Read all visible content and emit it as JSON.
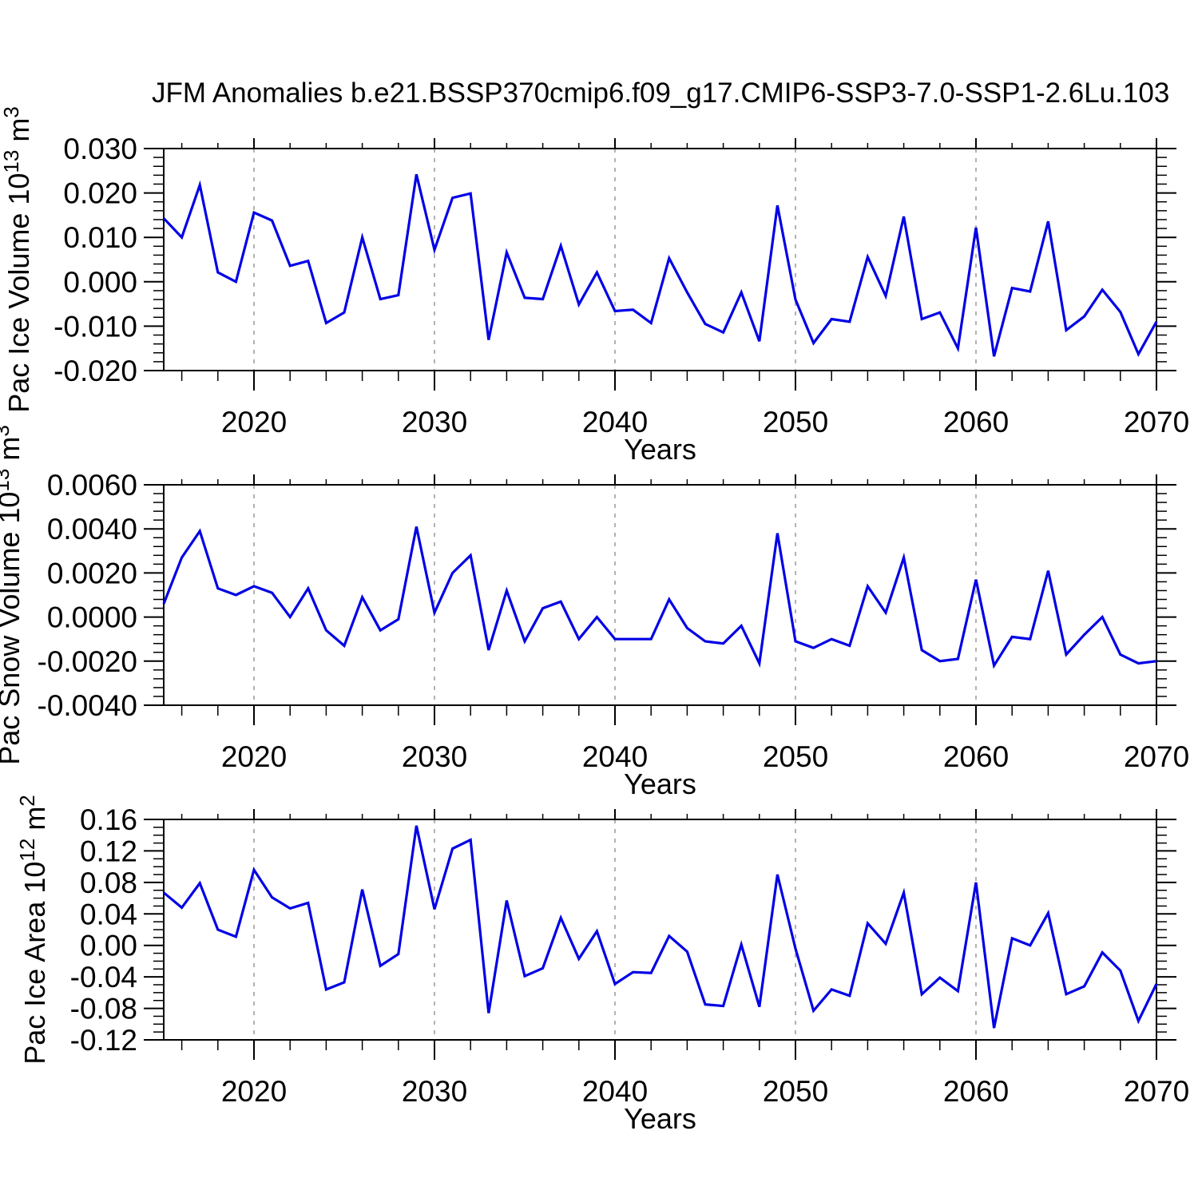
{
  "title": "JFM Anomalies b.e21.BSSP370cmip6.f09_g17.CMIP6-SSP3-7.0-SSP1-2.6Lu.103",
  "xlabel": "Years",
  "line_color": "#0000e6",
  "grid_color": "#999999",
  "axis_color": "#000000",
  "x_major_ticks": [
    2020,
    2030,
    2040,
    2050,
    2060,
    2070
  ],
  "x_minor_step_years": 2,
  "grid_years": [
    2020,
    2030,
    2040,
    2050,
    2060
  ],
  "years_start": 2015,
  "years_end": 2070,
  "chart_data": [
    {
      "type": "line",
      "name": "pac-ice-volume",
      "ylabel_text": "Pac Ice Volume 10^13 m^3",
      "ylabel_parts": [
        {
          "t": "Pac Ice Volume 10"
        },
        {
          "sup": "13"
        },
        {
          "t": " m"
        },
        {
          "sup": "3"
        }
      ],
      "xlabel": "Years",
      "xlim": [
        2015,
        2070
      ],
      "ylim": [
        -0.02,
        0.03
      ],
      "grid": "vertical-dashed",
      "legend": "none",
      "ytick_values": [
        0.03,
        0.02,
        0.01,
        0.0,
        -0.01,
        -0.02
      ],
      "ytick_labels": [
        "0.030",
        "0.020",
        "0.010",
        "0.000",
        "-0.010",
        "-0.020"
      ],
      "y_minor_step": 0.002,
      "y_major_every": 5,
      "x": [
        2015,
        2016,
        2017,
        2018,
        2019,
        2020,
        2021,
        2022,
        2023,
        2024,
        2025,
        2026,
        2027,
        2028,
        2029,
        2030,
        2031,
        2032,
        2033,
        2034,
        2035,
        2036,
        2037,
        2038,
        2039,
        2040,
        2041,
        2042,
        2043,
        2044,
        2045,
        2046,
        2047,
        2048,
        2049,
        2050,
        2051,
        2052,
        2053,
        2054,
        2055,
        2056,
        2057,
        2058,
        2059,
        2060,
        2061,
        2062,
        2063,
        2064,
        2065,
        2066,
        2067,
        2068,
        2069,
        2070
      ],
      "values": [
        0.0143,
        0.01,
        0.0218,
        0.0021,
        0.0,
        0.0156,
        0.0138,
        0.0036,
        0.0047,
        -0.0093,
        -0.0069,
        0.01,
        -0.0039,
        -0.003,
        0.0242,
        0.0072,
        0.0189,
        0.0199,
        -0.0131,
        0.0066,
        -0.0036,
        -0.0039,
        0.0081,
        -0.0051,
        0.0021,
        -0.0066,
        -0.0063,
        -0.0093,
        0.0053,
        -0.0024,
        -0.0095,
        -0.0114,
        -0.0024,
        -0.0134,
        0.0172,
        -0.004,
        -0.0138,
        -0.0084,
        -0.009,
        0.0056,
        -0.0032,
        0.0147,
        -0.0084,
        -0.0069,
        -0.015,
        0.0122,
        -0.0168,
        -0.0014,
        -0.0022,
        0.0136,
        -0.0109,
        -0.0078,
        -0.0018,
        -0.0068,
        -0.0163,
        -0.009
      ]
    },
    {
      "type": "line",
      "name": "pac-snow-volume",
      "ylabel_text": "Pac Snow Volume 10^13 m^3",
      "ylabel_parts": [
        {
          "t": "Pac Snow Volume 10"
        },
        {
          "sup": "13"
        },
        {
          "t": " m"
        },
        {
          "sup": "3"
        }
      ],
      "xlabel": "Years",
      "xlim": [
        2015,
        2070
      ],
      "ylim": [
        -0.004,
        0.006
      ],
      "grid": "vertical-dashed",
      "legend": "none",
      "ytick_values": [
        0.006,
        0.004,
        0.002,
        0.0,
        -0.002,
        -0.004
      ],
      "ytick_labels": [
        "0.0060",
        "0.0040",
        "0.0020",
        "0.0000",
        "-0.0020",
        "-0.0040"
      ],
      "y_minor_step": 0.0004,
      "y_major_every": 5,
      "x": [
        2015,
        2016,
        2017,
        2018,
        2019,
        2020,
        2021,
        2022,
        2023,
        2024,
        2025,
        2026,
        2027,
        2028,
        2029,
        2030,
        2031,
        2032,
        2033,
        2034,
        2035,
        2036,
        2037,
        2038,
        2039,
        2040,
        2041,
        2042,
        2043,
        2044,
        2045,
        2046,
        2047,
        2048,
        2049,
        2050,
        2051,
        2052,
        2053,
        2054,
        2055,
        2056,
        2057,
        2058,
        2059,
        2060,
        2061,
        2062,
        2063,
        2064,
        2065,
        2066,
        2067,
        2068,
        2069,
        2070
      ],
      "values": [
        0.0006,
        0.0027,
        0.0039,
        0.0013,
        0.001,
        0.0014,
        0.0011,
        0.0,
        0.0013,
        -0.0006,
        -0.0013,
        0.0009,
        -0.0006,
        -0.0001,
        0.0041,
        0.0002,
        0.002,
        0.0028,
        -0.0015,
        0.0012,
        -0.0011,
        0.0004,
        0.0007,
        -0.001,
        0.0,
        -0.001,
        -0.001,
        -0.001,
        0.0008,
        -0.0005,
        -0.0011,
        -0.0012,
        -0.0004,
        -0.0021,
        0.0038,
        -0.0011,
        -0.0014,
        -0.001,
        -0.0013,
        0.0014,
        0.0002,
        0.0027,
        -0.0015,
        -0.002,
        -0.0019,
        0.0017,
        -0.0022,
        -0.0009,
        -0.001,
        0.0021,
        -0.0017,
        -0.0008,
        0.0,
        -0.0017,
        -0.0021,
        -0.002
      ]
    },
    {
      "type": "line",
      "name": "pac-ice-area",
      "ylabel_text": "Pac Ice Area 10^12 m^2",
      "ylabel_parts": [
        {
          "t": "Pac Ice Area 10"
        },
        {
          "sup": "12"
        },
        {
          "t": " m"
        },
        {
          "sup": "2"
        }
      ],
      "xlabel": "Years",
      "xlim": [
        2015,
        2070
      ],
      "ylim": [
        -0.12,
        0.16
      ],
      "grid": "vertical-dashed",
      "legend": "none",
      "ytick_values": [
        0.16,
        0.12,
        0.08,
        0.04,
        0.0,
        -0.04,
        -0.08,
        -0.12
      ],
      "ytick_labels": [
        "0.16",
        "0.12",
        "0.08",
        "0.04",
        "0.00",
        "-0.04",
        "-0.08",
        "-0.12"
      ],
      "y_minor_step": 0.01,
      "y_major_every": 4,
      "x": [
        2015,
        2016,
        2017,
        2018,
        2019,
        2020,
        2021,
        2022,
        2023,
        2024,
        2025,
        2026,
        2027,
        2028,
        2029,
        2030,
        2031,
        2032,
        2033,
        2034,
        2035,
        2036,
        2037,
        2038,
        2039,
        2040,
        2041,
        2042,
        2043,
        2044,
        2045,
        2046,
        2047,
        2048,
        2049,
        2050,
        2051,
        2052,
        2053,
        2054,
        2055,
        2056,
        2057,
        2058,
        2059,
        2060,
        2061,
        2062,
        2063,
        2064,
        2065,
        2066,
        2067,
        2068,
        2069,
        2070
      ],
      "values": [
        0.067,
        0.048,
        0.079,
        0.02,
        0.011,
        0.096,
        0.061,
        0.047,
        0.054,
        -0.056,
        -0.047,
        0.071,
        -0.026,
        -0.011,
        0.152,
        0.046,
        0.123,
        0.134,
        -0.086,
        0.057,
        -0.039,
        -0.029,
        0.035,
        -0.017,
        0.018,
        -0.049,
        -0.034,
        -0.035,
        0.012,
        -0.008,
        -0.075,
        -0.077,
        0.001,
        -0.078,
        0.09,
        -0.004,
        -0.083,
        -0.056,
        -0.064,
        0.028,
        0.002,
        0.067,
        -0.062,
        -0.041,
        -0.058,
        0.08,
        -0.105,
        0.009,
        0.0,
        0.041,
        -0.062,
        -0.052,
        -0.009,
        -0.032,
        -0.096,
        -0.049
      ]
    }
  ]
}
